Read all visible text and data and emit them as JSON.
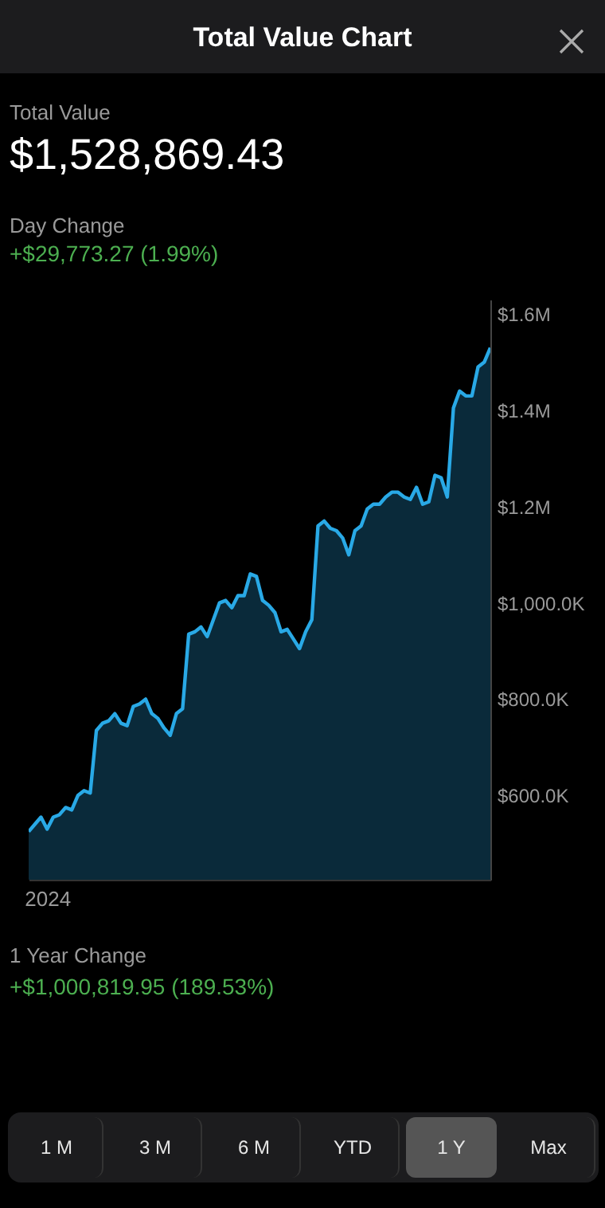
{
  "chart_data": {
    "type": "area",
    "title": "Total Value Chart",
    "annotations": [
      "Total Value",
      "$1,528,869.43",
      "Day Change",
      "+$29,773.27 (1.99%)",
      "1 Year Change",
      "+$1,000,819.95 (189.53%)",
      "1 M",
      "3 M",
      "6 M",
      "YTD",
      "1 Y",
      "Max"
    ],
    "categories": [
      null,
      null,
      null,
      "2024",
      null,
      null,
      null,
      null,
      null,
      null,
      null,
      null,
      null,
      null,
      null,
      null,
      null,
      null,
      null,
      null,
      null,
      null,
      null,
      null,
      null,
      null,
      null,
      null,
      null,
      null,
      null,
      null,
      null,
      null,
      null,
      null,
      null,
      null,
      null,
      null,
      null,
      null,
      null,
      null,
      null,
      null,
      null,
      null,
      null,
      null,
      null,
      null,
      null,
      null,
      null,
      null,
      null,
      null,
      null,
      null,
      null,
      null,
      null,
      null,
      null,
      null,
      null,
      null,
      null,
      null,
      null,
      null,
      null,
      null,
      null,
      null
    ],
    "series": [
      {
        "color": "#29a9e6",
        "values": [
          525000,
          540000,
          555000,
          530000,
          555000,
          560000,
          575000,
          570000,
          600000,
          610000,
          605000,
          735000,
          750000,
          755000,
          770000,
          750000,
          745000,
          785000,
          790000,
          800000,
          770000,
          760000,
          740000,
          725000,
          770000,
          780000,
          935000,
          940000,
          950000,
          930000,
          965000,
          1000000,
          1005000,
          990000,
          1015000,
          1015000,
          1060000,
          1055000,
          1005000,
          995000,
          980000,
          940000,
          945000,
          925000,
          905000,
          940000,
          965000,
          1160000,
          1170000,
          1155000,
          1150000,
          1135000,
          1100000,
          1150000,
          1160000,
          1195000,
          1205000,
          1205000,
          1220000,
          1230000,
          1230000,
          1220000,
          1215000,
          1240000,
          1205000,
          1210000,
          1265000,
          1260000,
          1220000,
          1405000,
          1440000,
          1430000,
          1430000,
          1490000,
          1500000,
          1530000
        ]
      }
    ],
    "ylim": [
      425000,
      1630000
    ],
    "yticks": [
      {
        "value": 600000,
        "label": "$600.0K"
      },
      {
        "value": 800000,
        "label": "$800.0K"
      },
      {
        "value": 1000000,
        "label": "$1,000.0K"
      },
      {
        "value": 1200000,
        "label": "$1.2M"
      },
      {
        "value": 1400000,
        "label": "$1.4M"
      },
      {
        "value": 1600000,
        "label": "$1.6M"
      }
    ],
    "marker": "none",
    "line_style": "solid"
  }
}
